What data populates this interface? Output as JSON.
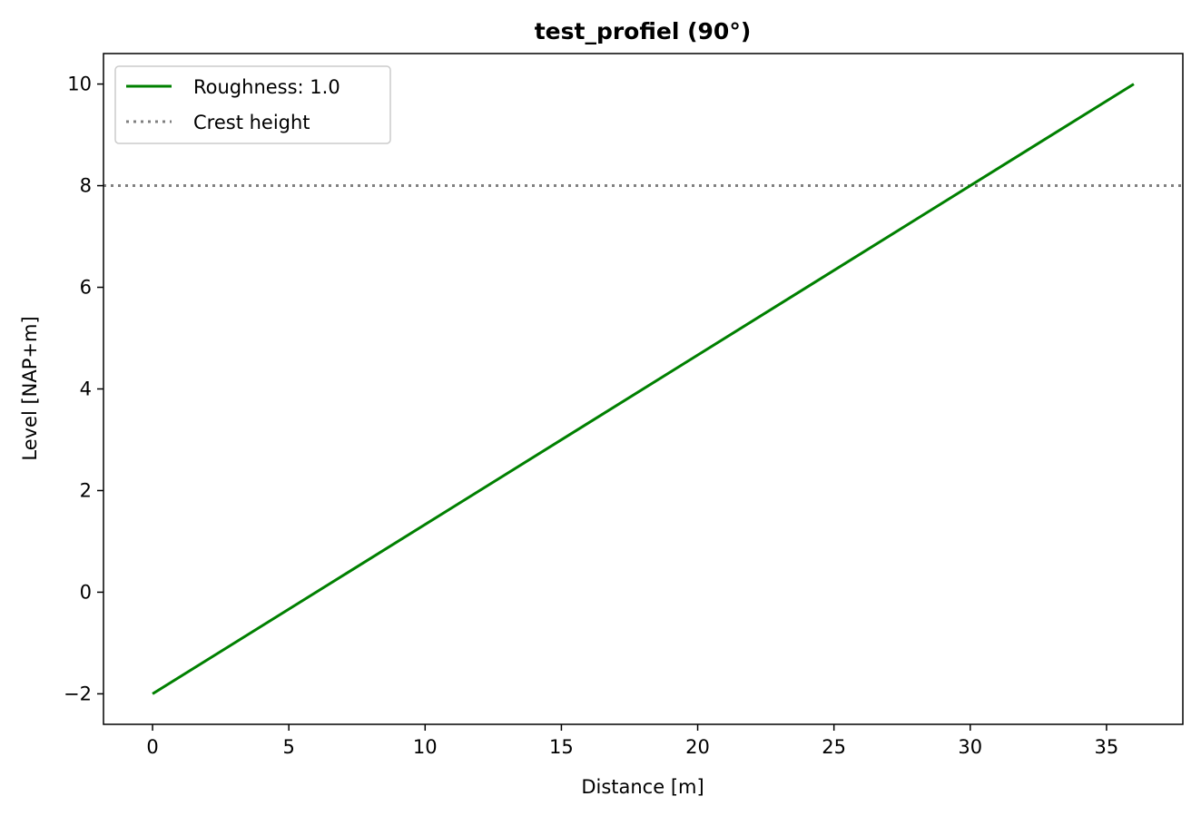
{
  "chart_data": {
    "type": "line",
    "title": "test_profiel (90°)",
    "xlabel": "Distance [m]",
    "ylabel": "Level [NAP+m]",
    "xlim": [
      -1.8,
      37.8
    ],
    "ylim": [
      -2.6,
      10.6
    ],
    "xticks": [
      0,
      5,
      10,
      15,
      20,
      25,
      30,
      35
    ],
    "yticks": [
      -2,
      0,
      2,
      4,
      6,
      8,
      10
    ],
    "xtick_labels": [
      "0",
      "5",
      "10",
      "15",
      "20",
      "25",
      "30",
      "35"
    ],
    "ytick_labels": [
      "−2",
      "0",
      "2",
      "4",
      "6",
      "8",
      "10"
    ],
    "grid": false,
    "legend_position": "top-left",
    "series": [
      {
        "name": "Roughness: 1.0",
        "color": "#008000",
        "style": "solid",
        "x": [
          0,
          36
        ],
        "y": [
          -2,
          10
        ]
      }
    ],
    "hlines": [
      {
        "name": "Crest height",
        "y": 8,
        "color": "#808080",
        "style": "dotted"
      }
    ]
  }
}
